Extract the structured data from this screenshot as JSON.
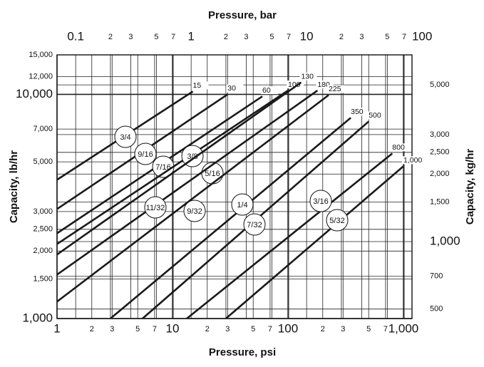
{
  "chart_data": {
    "type": "line",
    "x2label": "Pressure, bar",
    "xlabel": "Pressure, psi",
    "ylabel": "Capacity, lb/hr",
    "y2label": "Capacity, kg/hr",
    "xscale": "log",
    "yscale": "log",
    "grid": true,
    "line_color": "#1a1a1a",
    "xlim": [
      1,
      1186
    ],
    "x2lim": [
      0.06895,
      81.8
    ],
    "ylim": [
      1000,
      15000
    ],
    "y2lim": [
      453.6,
      6804
    ],
    "xticks": [
      1,
      2,
      3,
      5,
      7,
      10,
      {
        "value": 20,
        "label": "2"
      },
      {
        "value": 30,
        "label": "3"
      },
      {
        "value": 50,
        "label": "5"
      },
      {
        "value": 70,
        "label": "7"
      },
      100,
      {
        "value": 200,
        "label": "2"
      },
      {
        "value": 300,
        "label": "3"
      },
      {
        "value": 500,
        "label": "5"
      },
      {
        "value": 700,
        "label": "7"
      },
      {
        "value": 1000,
        "label": "1,000"
      }
    ],
    "x2ticks": [
      0.1,
      {
        "value": 0.2,
        "label": "2"
      },
      {
        "value": 0.3,
        "label": "3"
      },
      {
        "value": 0.5,
        "label": "5"
      },
      {
        "value": 0.7,
        "label": "7"
      },
      1,
      2,
      3,
      5,
      7,
      10,
      {
        "value": 20,
        "label": "2"
      },
      {
        "value": 30,
        "label": "3"
      },
      {
        "value": 50,
        "label": "5"
      },
      {
        "value": 70,
        "label": "7"
      },
      100
    ],
    "yticks": [
      {
        "value": 1000,
        "label": "1,000"
      },
      {
        "value": 1500,
        "label": "1,500"
      },
      {
        "value": 2000,
        "label": "2,000"
      },
      {
        "value": 2500,
        "label": "2,500"
      },
      {
        "value": 3000,
        "label": "3,000"
      },
      {
        "value": 5000,
        "label": "5,000"
      },
      {
        "value": 7000,
        "label": "7,000"
      },
      {
        "value": 10000,
        "label": "10,000"
      },
      {
        "value": 12000,
        "label": "12,000"
      },
      {
        "value": 15000,
        "label": "15,000"
      }
    ],
    "y2ticks": [
      500,
      700,
      {
        "value": 1000,
        "label": "1,000"
      },
      {
        "value": 1500,
        "label": "1,500"
      },
      {
        "value": 2000,
        "label": "2,000"
      },
      {
        "value": 2500,
        "label": "2,500"
      },
      {
        "value": 3000,
        "label": "3,000"
      },
      {
        "value": 5000,
        "label": "5,000"
      }
    ],
    "series": [
      {
        "name": "15",
        "orifice": "3/4",
        "x": [
          1,
          15
        ],
        "values": [
          4160,
          10300
        ]
      },
      {
        "name": "30",
        "orifice": "9/16",
        "x": [
          1,
          30
        ],
        "values": [
          3080,
          10000
        ]
      },
      {
        "name": "60",
        "orifice": "7/16",
        "x": [
          1,
          60
        ],
        "values": [
          2400,
          9800
        ]
      },
      {
        "name": "100",
        "orifice": "3/8",
        "x": [
          1,
          100
        ],
        "values": [
          2150,
          10400
        ]
      },
      {
        "name": "130",
        "orifice": "5/16",
        "x": [
          1,
          130
        ],
        "values": [
          1930,
          11300
        ]
      },
      {
        "name": "180",
        "orifice": "11/32",
        "x": [
          1,
          180
        ],
        "values": [
          1570,
          10400
        ]
      },
      {
        "name": "225",
        "orifice": "9/32",
        "x": [
          1,
          225
        ],
        "values": [
          1190,
          9930
        ]
      },
      {
        "name": "350",
        "orifice": "1/4",
        "x": [
          2.9,
          350
        ],
        "values": [
          1000,
          7860
        ]
      },
      {
        "name": "500",
        "orifice": "7/32",
        "x": [
          5.5,
          500
        ],
        "values": [
          1000,
          7570
        ]
      },
      {
        "name": "800",
        "orifice": "3/16",
        "x": [
          13.3,
          800
        ],
        "values": [
          1000,
          5450
        ]
      },
      {
        "name": "1,000",
        "orifice": "5/32",
        "x": [
          29,
          1000
        ],
        "values": [
          1000,
          4780
        ]
      }
    ]
  }
}
